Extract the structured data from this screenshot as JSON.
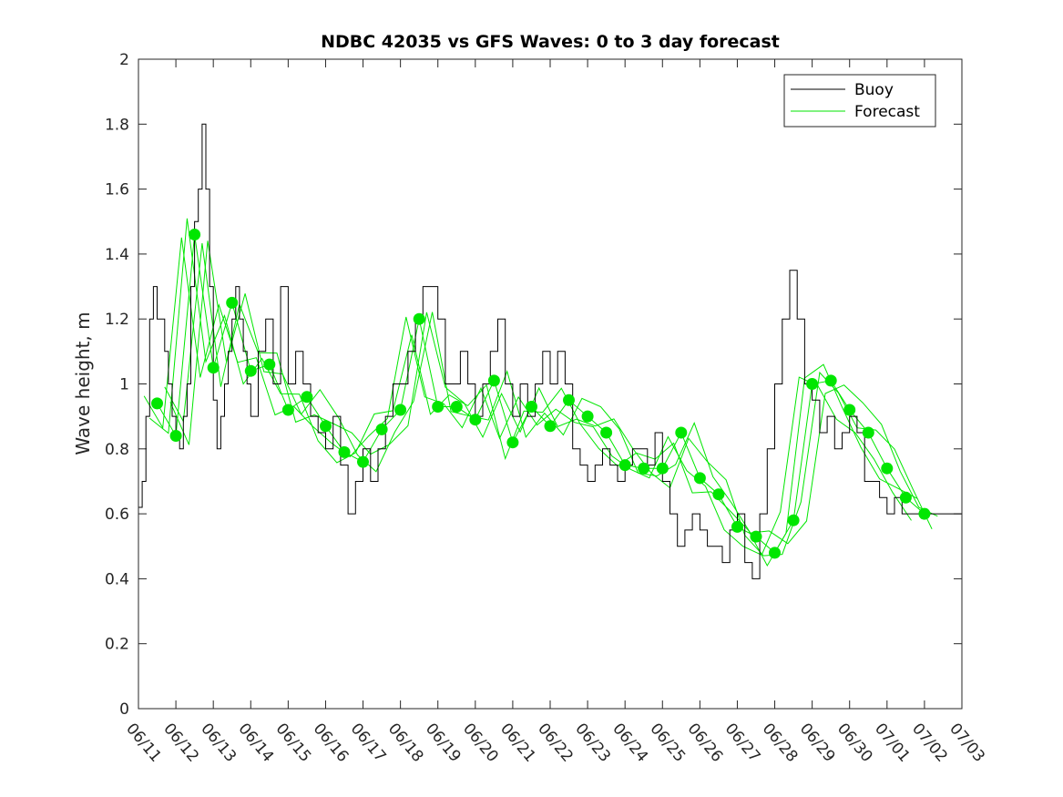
{
  "chart_data": {
    "type": "line",
    "title": "NDBC 42035 vs GFS Waves: 0 to 3 day forecast",
    "xlabel": "",
    "ylabel": "Wave height, m",
    "xlim": [
      "06/11",
      "07/03"
    ],
    "ylim": [
      0,
      2
    ],
    "yticks": [
      0,
      0.2,
      0.4,
      0.6,
      0.8,
      1,
      1.2,
      1.4,
      1.6,
      1.8,
      2
    ],
    "ytick_labels": [
      "0",
      "0.2",
      "0.4",
      "0.6",
      "0.8",
      "1",
      "1.2",
      "1.4",
      "1.6",
      "1.8",
      "2"
    ],
    "xtick_labels": [
      "06/11",
      "06/12",
      "06/13",
      "06/14",
      "06/15",
      "06/16",
      "06/17",
      "06/18",
      "06/19",
      "06/20",
      "06/21",
      "06/22",
      "06/23",
      "06/24",
      "06/25",
      "06/26",
      "06/27",
      "06/28",
      "06/29",
      "06/30",
      "07/01",
      "07/02",
      "07/03"
    ],
    "grid": false,
    "legend_position": "top-right",
    "legend": [
      {
        "name": "Buoy",
        "color": "#000000"
      },
      {
        "name": "Forecast",
        "color": "#00e600"
      }
    ],
    "series": [
      {
        "name": "Buoy",
        "color": "#000000",
        "x_day": [
          0,
          0.1,
          0.2,
          0.3,
          0.4,
          0.5,
          0.6,
          0.7,
          0.8,
          0.9,
          1.0,
          1.1,
          1.2,
          1.3,
          1.4,
          1.5,
          1.6,
          1.7,
          1.8,
          1.9,
          2.0,
          2.1,
          2.2,
          2.3,
          2.4,
          2.5,
          2.6,
          2.7,
          2.8,
          2.9,
          3.0,
          3.2,
          3.4,
          3.6,
          3.8,
          4.0,
          4.2,
          4.4,
          4.6,
          4.8,
          5.0,
          5.2,
          5.4,
          5.6,
          5.8,
          6.0,
          6.2,
          6.4,
          6.6,
          6.8,
          7.0,
          7.2,
          7.4,
          7.6,
          7.8,
          8.0,
          8.2,
          8.4,
          8.6,
          8.8,
          9.0,
          9.2,
          9.4,
          9.6,
          9.8,
          10.0,
          10.2,
          10.4,
          10.6,
          10.8,
          11.0,
          11.2,
          11.4,
          11.6,
          11.8,
          12.0,
          12.2,
          12.4,
          12.6,
          12.8,
          13.0,
          13.2,
          13.4,
          13.6,
          13.8,
          14.0,
          14.2,
          14.4,
          14.6,
          14.8,
          15.0,
          15.2,
          15.4,
          15.6,
          15.8,
          16.0,
          16.2,
          16.4,
          16.6,
          16.8,
          17.0,
          17.2,
          17.4,
          17.6,
          17.8,
          18.0,
          18.2,
          18.4,
          18.6,
          18.8,
          19.0,
          19.2,
          19.4,
          19.6,
          19.8,
          20.0,
          20.2,
          20.4,
          20.6,
          20.8,
          21.0,
          21.2,
          21.4,
          21.6,
          21.8,
          22.0
        ],
        "values": [
          0.62,
          0.7,
          0.9,
          1.2,
          1.3,
          1.2,
          1.2,
          1.1,
          1.0,
          0.9,
          0.85,
          0.8,
          0.9,
          1.0,
          1.3,
          1.5,
          1.6,
          1.8,
          1.6,
          1.3,
          0.95,
          0.8,
          0.9,
          1.0,
          1.1,
          1.2,
          1.3,
          1.2,
          1.1,
          1.0,
          0.9,
          1.1,
          1.2,
          1.0,
          1.3,
          1.0,
          1.1,
          1.0,
          0.9,
          0.85,
          0.8,
          0.9,
          0.75,
          0.6,
          0.7,
          0.8,
          0.7,
          0.8,
          0.9,
          1.0,
          1.0,
          1.1,
          1.2,
          1.3,
          1.3,
          1.2,
          1.0,
          1.0,
          1.1,
          1.0,
          0.9,
          1.0,
          1.1,
          1.2,
          1.0,
          0.9,
          1.0,
          0.9,
          1.0,
          1.1,
          1.0,
          1.1,
          1.0,
          0.8,
          0.75,
          0.7,
          0.75,
          0.8,
          0.75,
          0.7,
          0.75,
          0.8,
          0.8,
          0.75,
          0.85,
          0.7,
          0.6,
          0.5,
          0.55,
          0.6,
          0.55,
          0.5,
          0.5,
          0.45,
          0.55,
          0.6,
          0.45,
          0.4,
          0.6,
          0.8,
          1.0,
          1.2,
          1.35,
          1.2,
          1.0,
          0.95,
          0.85,
          0.9,
          0.8,
          0.85,
          0.9,
          0.85,
          0.7,
          0.7,
          0.65,
          0.6,
          0.65,
          0.6,
          0.6,
          0.6,
          0.6,
          0.6,
          0.6,
          0.6,
          0.6,
          0.6
        ]
      },
      {
        "name": "Forecast",
        "color": "#00e600",
        "points_x_day": [
          0.5,
          1.0,
          1.5,
          2.0,
          2.5,
          3.0,
          3.5,
          4.0,
          4.5,
          5.0,
          5.5,
          6.0,
          6.5,
          7.0,
          7.5,
          8.0,
          8.5,
          9.0,
          9.5,
          10.0,
          10.5,
          11.0,
          11.5,
          12.0,
          12.5,
          13.0,
          13.5,
          14.0,
          14.5,
          15.0,
          15.5,
          16.0,
          16.5,
          17.0,
          17.5,
          18.0,
          18.5,
          19.0,
          19.5,
          20.0,
          20.5,
          21.0
        ],
        "points": [
          0.94,
          0.84,
          1.46,
          1.05,
          1.25,
          1.04,
          1.06,
          0.92,
          0.96,
          0.87,
          0.79,
          0.76,
          0.86,
          0.92,
          1.2,
          0.93,
          0.93,
          0.89,
          1.01,
          0.82,
          0.93,
          0.87,
          0.95,
          0.9,
          0.85,
          0.75,
          0.74,
          0.74,
          0.85,
          0.71,
          0.66,
          0.56,
          0.53,
          0.48,
          0.58,
          1.0,
          1.01,
          0.92,
          0.85,
          0.74,
          0.65,
          0.6
        ]
      }
    ]
  }
}
